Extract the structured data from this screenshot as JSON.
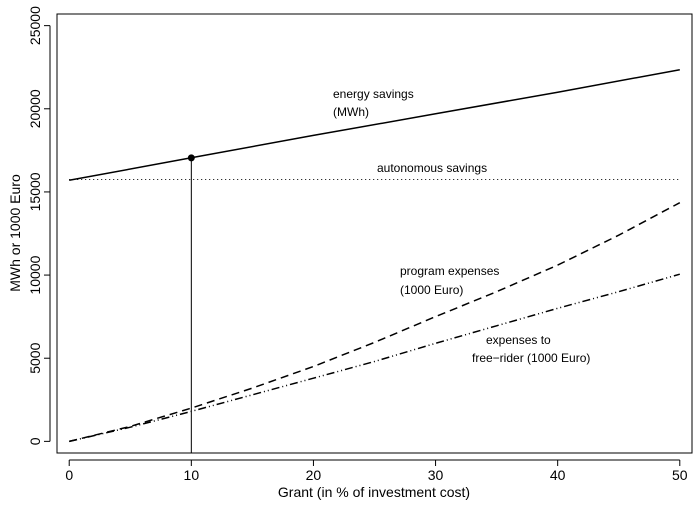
{
  "chart_data": {
    "type": "line",
    "xlabel": "Grant  (in % of investment cost)",
    "ylabel": "MWh or 1000 Euro",
    "xlim": [
      -1,
      51
    ],
    "ylim": [
      -700,
      25700
    ],
    "x_ticks": [
      0,
      10,
      20,
      30,
      40,
      50
    ],
    "y_ticks": [
      0,
      5000,
      10000,
      15000,
      20000,
      25000
    ],
    "x_tick_labels": [
      "0",
      "10",
      "20",
      "30",
      "40",
      "50"
    ],
    "y_tick_labels": [
      "0",
      "5000",
      "10000",
      "15000",
      "20000",
      "25000"
    ],
    "grid": false,
    "series": [
      {
        "key": "energy",
        "style": "solid",
        "x": [
          0,
          10,
          20,
          30,
          40,
          50
        ],
        "values": [
          15700,
          17050,
          18400,
          19700,
          21000,
          22350
        ]
      },
      {
        "key": "autonomous",
        "style": "dotted",
        "x": [
          0,
          50
        ],
        "values": [
          15750,
          15750
        ]
      },
      {
        "key": "program",
        "style": "dashed",
        "x": [
          0,
          5,
          10,
          15,
          20,
          25,
          30,
          35,
          40,
          45,
          50
        ],
        "values": [
          0,
          900,
          2000,
          3200,
          4500,
          5950,
          7500,
          9000,
          10600,
          12400,
          14350
        ]
      },
      {
        "key": "freerider",
        "style": "dash-dot",
        "x": [
          0,
          5,
          10,
          15,
          20,
          25,
          30,
          35,
          40,
          45,
          50
        ],
        "values": [
          0,
          850,
          1800,
          2800,
          3800,
          4800,
          5900,
          6950,
          8000,
          9000,
          10050
        ]
      }
    ],
    "marker": {
      "x": 10,
      "y": 17050
    },
    "annotations": {
      "energy": [
        "energy savings",
        "(MWh)"
      ],
      "autonomous": [
        "autonomous savings"
      ],
      "program": [
        "program expenses",
        "(1000 Euro)"
      ],
      "freerider": [
        "expenses to",
        "free−rider (1000 Euro)"
      ]
    }
  }
}
